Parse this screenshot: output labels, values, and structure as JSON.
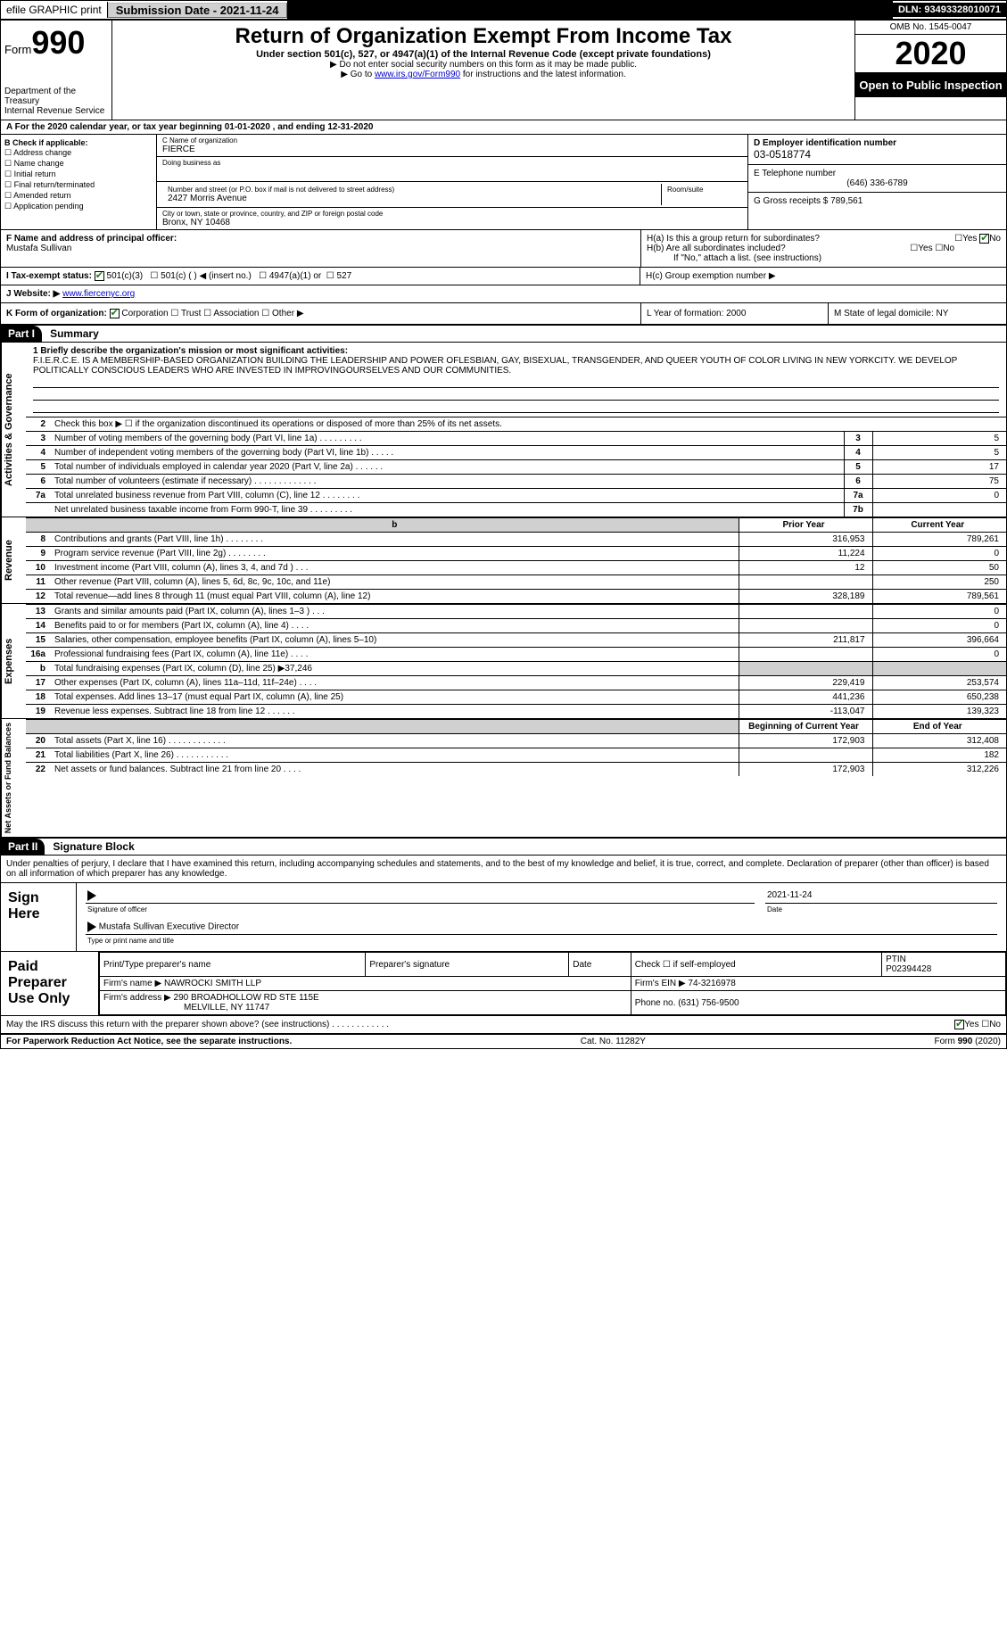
{
  "topbar": {
    "efile": "efile GRAPHIC print",
    "submission_label": "Submission Date - 2021-11-24",
    "dln": "DLN: 93493328010071"
  },
  "header": {
    "form_word": "Form",
    "form_num": "990",
    "dept": "Department of the Treasury",
    "irs": "Internal Revenue Service",
    "title": "Return of Organization Exempt From Income Tax",
    "sub": "Under section 501(c), 527, or 4947(a)(1) of the Internal Revenue Code (except private foundations)",
    "note1": "▶ Do not enter social security numbers on this form as it may be made public.",
    "note2_pre": "▶ Go to ",
    "note2_link": "www.irs.gov/Form990",
    "note2_post": " for instructions and the latest information.",
    "omb": "OMB No. 1545-0047",
    "year": "2020",
    "inspect": "Open to Public Inspection"
  },
  "line_a": "A  For the 2020 calendar year, or tax year beginning 01-01-2020    , and ending 12-31-2020",
  "col_b": {
    "label": "B Check if applicable:",
    "opts": [
      "Address change",
      "Name change",
      "Initial return",
      "Final return/terminated",
      "Amended return",
      "Application pending"
    ]
  },
  "col_c": {
    "name_lbl": "C Name of organization",
    "name": "FIERCE",
    "dba_lbl": "Doing business as",
    "addr_lbl": "Number and street (or P.O. box if mail is not delivered to street address)",
    "room_lbl": "Room/suite",
    "addr": "2427 Morris Avenue",
    "city_lbl": "City or town, state or province, country, and ZIP or foreign postal code",
    "city": "Bronx, NY  10468"
  },
  "col_d": {
    "ein_lbl": "D Employer identification number",
    "ein": "03-0518774",
    "tel_lbl": "E Telephone number",
    "tel": "(646) 336-6789",
    "gross_lbl": "G Gross receipts $ 789,561"
  },
  "f": {
    "lbl": "F  Name and address of principal officer:",
    "name": "Mustafa Sullivan"
  },
  "h": {
    "a": "H(a)  Is this a group return for subordinates?",
    "b": "H(b)  Are all subordinates included?",
    "b_note": "If \"No,\" attach a list. (see instructions)",
    "c": "H(c)  Group exemption number ▶",
    "yes": "Yes",
    "no": "No"
  },
  "i": {
    "lbl": "I  Tax-exempt status:",
    "o1": "501(c)(3)",
    "o2": "501(c) (  ) ◀ (insert no.)",
    "o3": "4947(a)(1) or",
    "o4": "527"
  },
  "j": {
    "lbl": "J  Website: ▶",
    "val": "www.fiercenyc.org"
  },
  "k": {
    "lbl": "K Form of organization:",
    "o1": "Corporation",
    "o2": "Trust",
    "o3": "Association",
    "o4": "Other ▶"
  },
  "l": {
    "txt": "L Year of formation: 2000"
  },
  "m": {
    "txt": "M State of legal domicile: NY"
  },
  "part1": {
    "num": "Part I",
    "title": "Summary"
  },
  "mission": {
    "lbl": "1  Briefly describe the organization's mission or most significant activities:",
    "txt": "F.I.E.R.C.E. IS A MEMBERSHIP-BASED ORGANIZATION BUILDING THE LEADERSHIP AND POWER OFLESBIAN, GAY, BISEXUAL, TRANSGENDER, AND QUEER YOUTH OF COLOR LIVING IN NEW YORKCITY. WE DEVELOP POLITICALLY CONSCIOUS LEADERS WHO ARE INVESTED IN IMPROVINGOURSELVES AND OUR COMMUNITIES."
  },
  "gov_rows": [
    {
      "n": "2",
      "t": "Check this box ▶ ☐ if the organization discontinued its operations or disposed of more than 25% of its net assets."
    },
    {
      "n": "3",
      "t": "Number of voting members of the governing body (Part VI, line 1a)   .    .    .    .    .    .    .    .    .",
      "b": "3",
      "v": "5"
    },
    {
      "n": "4",
      "t": "Number of independent voting members of the governing body (Part VI, line 1b)   .    .    .    .    .",
      "b": "4",
      "v": "5"
    },
    {
      "n": "5",
      "t": "Total number of individuals employed in calendar year 2020 (Part V, line 2a)   .    .    .    .    .    .",
      "b": "5",
      "v": "17"
    },
    {
      "n": "6",
      "t": "Total number of volunteers (estimate if necessary)   .    .    .    .    .    .    .    .    .    .    .    .    .",
      "b": "6",
      "v": "75"
    },
    {
      "n": "7a",
      "t": "Total unrelated business revenue from Part VIII, column (C), line 12   .    .    .    .    .    .    .    .",
      "b": "7a",
      "v": "0"
    },
    {
      "n": "",
      "t": "Net unrelated business taxable income from Form 990-T, line 39   .    .    .    .    .    .    .    .    .",
      "b": "7b",
      "v": ""
    }
  ],
  "py_cy_hdr": {
    "py": "Prior Year",
    "cy": "Current Year",
    "b": "b"
  },
  "rev_rows": [
    {
      "n": "8",
      "t": "Contributions and grants (Part VIII, line 1h)   .    .    .    .    .    .    .    .",
      "py": "316,953",
      "cy": "789,261"
    },
    {
      "n": "9",
      "t": "Program service revenue (Part VIII, line 2g)   .    .    .    .    .    .    .    .",
      "py": "11,224",
      "cy": "0"
    },
    {
      "n": "10",
      "t": "Investment income (Part VIII, column (A), lines 3, 4, and 7d )   .    .    .",
      "py": "12",
      "cy": "50"
    },
    {
      "n": "11",
      "t": "Other revenue (Part VIII, column (A), lines 5, 6d, 8c, 9c, 10c, and 11e)",
      "py": "",
      "cy": "250"
    },
    {
      "n": "12",
      "t": "Total revenue—add lines 8 through 11 (must equal Part VIII, column (A), line 12)",
      "py": "328,189",
      "cy": "789,561"
    }
  ],
  "exp_rows": [
    {
      "n": "13",
      "t": "Grants and similar amounts paid (Part IX, column (A), lines 1–3 )   .    .    .",
      "py": "",
      "cy": "0"
    },
    {
      "n": "14",
      "t": "Benefits paid to or for members (Part IX, column (A), line 4)   .    .    .    .",
      "py": "",
      "cy": "0"
    },
    {
      "n": "15",
      "t": "Salaries, other compensation, employee benefits (Part IX, column (A), lines 5–10)",
      "py": "211,817",
      "cy": "396,664"
    },
    {
      "n": "16a",
      "t": "Professional fundraising fees (Part IX, column (A), line 11e)   .    .    .    .",
      "py": "",
      "cy": "0"
    },
    {
      "n": "b",
      "t": "Total fundraising expenses (Part IX, column (D), line 25) ▶37,246",
      "py": "shade",
      "cy": "shade"
    },
    {
      "n": "17",
      "t": "Other expenses (Part IX, column (A), lines 11a–11d, 11f–24e)   .    .    .    .",
      "py": "229,419",
      "cy": "253,574"
    },
    {
      "n": "18",
      "t": "Total expenses. Add lines 13–17 (must equal Part IX, column (A), line 25)",
      "py": "441,236",
      "cy": "650,238"
    },
    {
      "n": "19",
      "t": "Revenue less expenses. Subtract line 18 from line 12   .    .    .    .    .    .",
      "py": "-113,047",
      "cy": "139,323"
    }
  ],
  "na_hdr": {
    "py": "Beginning of Current Year",
    "cy": "End of Year"
  },
  "na_rows": [
    {
      "n": "20",
      "t": "Total assets (Part X, line 16)   .    .    .    .    .    .    .    .    .    .    .    .",
      "py": "172,903",
      "cy": "312,408"
    },
    {
      "n": "21",
      "t": "Total liabilities (Part X, line 26)   .    .    .    .    .    .    .    .    .    .    .",
      "py": "",
      "cy": "182"
    },
    {
      "n": "22",
      "t": "Net assets or fund balances. Subtract line 21 from line 20   .    .    .    .",
      "py": "172,903",
      "cy": "312,226"
    }
  ],
  "vlabels": {
    "gov": "Activities & Governance",
    "rev": "Revenue",
    "exp": "Expenses",
    "na": "Net Assets or Fund Balances"
  },
  "part2": {
    "num": "Part II",
    "title": "Signature Block"
  },
  "sig": {
    "declare": "Under penalties of perjury, I declare that I have examined this return, including accompanying schedules and statements, and to the best of my knowledge and belief, it is true, correct, and complete. Declaration of preparer (other than officer) is based on all information of which preparer has any knowledge.",
    "sign_here": "Sign Here",
    "date": "2021-11-24",
    "sig_officer": "Signature of officer",
    "date_lbl": "Date",
    "name_title": "Mustafa Sullivan  Executive Director",
    "type_lbl": "Type or print name and title"
  },
  "paid": {
    "label": "Paid Preparer Use Only",
    "h1": "Print/Type preparer's name",
    "h2": "Preparer's signature",
    "h3": "Date",
    "h4": "Check ☐ if self-employed",
    "h5": "PTIN",
    "ptin": "P02394428",
    "firm_name_lbl": "Firm's name    ▶",
    "firm_name": "NAWROCKI SMITH LLP",
    "firm_ein_lbl": "Firm's EIN ▶",
    "firm_ein": "74-3216978",
    "firm_addr_lbl": "Firm's address ▶",
    "firm_addr1": "290 BROADHOLLOW RD STE 115E",
    "firm_addr2": "MELVILLE, NY  11747",
    "phone_lbl": "Phone no.",
    "phone": "(631) 756-9500"
  },
  "discuss": {
    "q": "May the IRS discuss this return with the preparer shown above? (see instructions)   .    .    .    .    .    .    .    .    .    .    .    .",
    "yes": "Yes",
    "no": "No"
  },
  "footer": {
    "left": "For Paperwork Reduction Act Notice, see the separate instructions.",
    "mid": "Cat. No. 11282Y",
    "right": "Form 990 (2020)"
  }
}
